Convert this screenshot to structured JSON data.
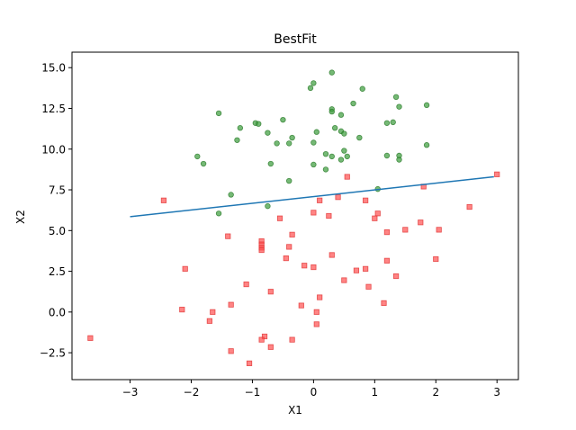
{
  "chart_data": {
    "type": "scatter",
    "title": "BestFit",
    "xlabel": "X1",
    "ylabel": "X2",
    "xlim": [
      -3.95,
      3.35
    ],
    "ylim": [
      -4.15,
      15.95
    ],
    "xticks": [
      -3,
      -2,
      -1,
      0,
      1,
      2,
      3
    ],
    "xtick_labels": [
      "−3",
      "−2",
      "−1",
      "0",
      "1",
      "2",
      "3"
    ],
    "yticks": [
      -2.5,
      0.0,
      2.5,
      5.0,
      7.5,
      10.0,
      12.5,
      15.0
    ],
    "ytick_labels": [
      "−2.5",
      "0.0",
      "2.5",
      "5.0",
      "7.5",
      "10.0",
      "12.5",
      "15.0"
    ],
    "grid": false,
    "colors": {
      "green_fill": "#3a9b3a",
      "green_edge": "#2a7a2a",
      "red_fill": "#ff5050",
      "red_edge": "#e03030",
      "line": "#1f77b4"
    },
    "series": [
      {
        "marker": "circle",
        "color": "green",
        "points": [
          [
            0.3,
            14.7
          ],
          [
            0.0,
            14.05
          ],
          [
            -0.05,
            13.75
          ],
          [
            0.8,
            13.7
          ],
          [
            1.35,
            13.2
          ],
          [
            0.65,
            12.8
          ],
          [
            1.85,
            12.7
          ],
          [
            1.4,
            12.6
          ],
          [
            0.3,
            12.45
          ],
          [
            0.3,
            12.3
          ],
          [
            0.45,
            12.1
          ],
          [
            -1.55,
            12.2
          ],
          [
            -0.5,
            11.8
          ],
          [
            -0.95,
            11.6
          ],
          [
            -0.9,
            11.55
          ],
          [
            1.3,
            11.65
          ],
          [
            1.2,
            11.6
          ],
          [
            -1.2,
            11.3
          ],
          [
            0.35,
            11.3
          ],
          [
            0.05,
            11.05
          ],
          [
            0.45,
            11.1
          ],
          [
            0.5,
            10.95
          ],
          [
            -0.75,
            11.0
          ],
          [
            0.75,
            10.7
          ],
          [
            -0.35,
            10.7
          ],
          [
            -0.4,
            10.35
          ],
          [
            -1.25,
            10.55
          ],
          [
            -0.6,
            10.35
          ],
          [
            0.0,
            10.4
          ],
          [
            1.85,
            10.25
          ],
          [
            0.5,
            9.9
          ],
          [
            0.2,
            9.7
          ],
          [
            0.3,
            9.55
          ],
          [
            0.55,
            9.55
          ],
          [
            1.2,
            9.6
          ],
          [
            1.4,
            9.6
          ],
          [
            -1.9,
            9.55
          ],
          [
            0.45,
            9.35
          ],
          [
            1.4,
            9.35
          ],
          [
            -1.8,
            9.1
          ],
          [
            -0.7,
            9.1
          ],
          [
            0.0,
            9.05
          ],
          [
            0.2,
            8.75
          ],
          [
            -0.4,
            8.05
          ],
          [
            -1.35,
            7.2
          ],
          [
            1.05,
            7.55
          ],
          [
            -0.75,
            6.5
          ],
          [
            -1.55,
            6.05
          ]
        ]
      },
      {
        "marker": "square",
        "color": "red",
        "points": [
          [
            3.0,
            8.45
          ],
          [
            0.55,
            8.3
          ],
          [
            1.8,
            7.7
          ],
          [
            0.4,
            7.05
          ],
          [
            0.85,
            6.85
          ],
          [
            -2.45,
            6.85
          ],
          [
            0.1,
            6.85
          ],
          [
            2.55,
            6.45
          ],
          [
            0.0,
            6.1
          ],
          [
            1.05,
            6.05
          ],
          [
            0.25,
            5.9
          ],
          [
            1.0,
            5.75
          ],
          [
            -0.55,
            5.75
          ],
          [
            1.75,
            5.5
          ],
          [
            2.05,
            5.05
          ],
          [
            1.5,
            5.05
          ],
          [
            1.2,
            4.9
          ],
          [
            -0.35,
            4.75
          ],
          [
            -1.4,
            4.65
          ],
          [
            -0.85,
            4.35
          ],
          [
            -0.85,
            4.15
          ],
          [
            -0.85,
            3.95
          ],
          [
            -0.4,
            4.0
          ],
          [
            -0.85,
            3.8
          ],
          [
            0.3,
            3.5
          ],
          [
            -0.45,
            3.3
          ],
          [
            1.2,
            3.15
          ],
          [
            2.0,
            3.25
          ],
          [
            -0.15,
            2.85
          ],
          [
            -2.1,
            2.65
          ],
          [
            0.0,
            2.75
          ],
          [
            0.7,
            2.55
          ],
          [
            0.85,
            2.65
          ],
          [
            1.35,
            2.2
          ],
          [
            0.5,
            1.95
          ],
          [
            -1.1,
            1.7
          ],
          [
            0.9,
            1.55
          ],
          [
            -0.7,
            1.25
          ],
          [
            0.1,
            0.9
          ],
          [
            1.15,
            0.55
          ],
          [
            -1.35,
            0.45
          ],
          [
            -0.2,
            0.4
          ],
          [
            -2.15,
            0.15
          ],
          [
            -1.65,
            0.0
          ],
          [
            0.05,
            0.0
          ],
          [
            -1.7,
            -0.55
          ],
          [
            0.05,
            -0.75
          ],
          [
            -3.65,
            -1.6
          ],
          [
            -0.8,
            -1.5
          ],
          [
            -0.85,
            -1.7
          ],
          [
            -0.35,
            -1.7
          ],
          [
            -0.7,
            -2.15
          ],
          [
            -1.35,
            -2.4
          ],
          [
            -1.05,
            -3.15
          ]
        ]
      },
      {
        "type": "line",
        "color": "line",
        "x": [
          -3.0,
          2.95
        ],
        "y": [
          5.85,
          8.3
        ]
      }
    ]
  }
}
